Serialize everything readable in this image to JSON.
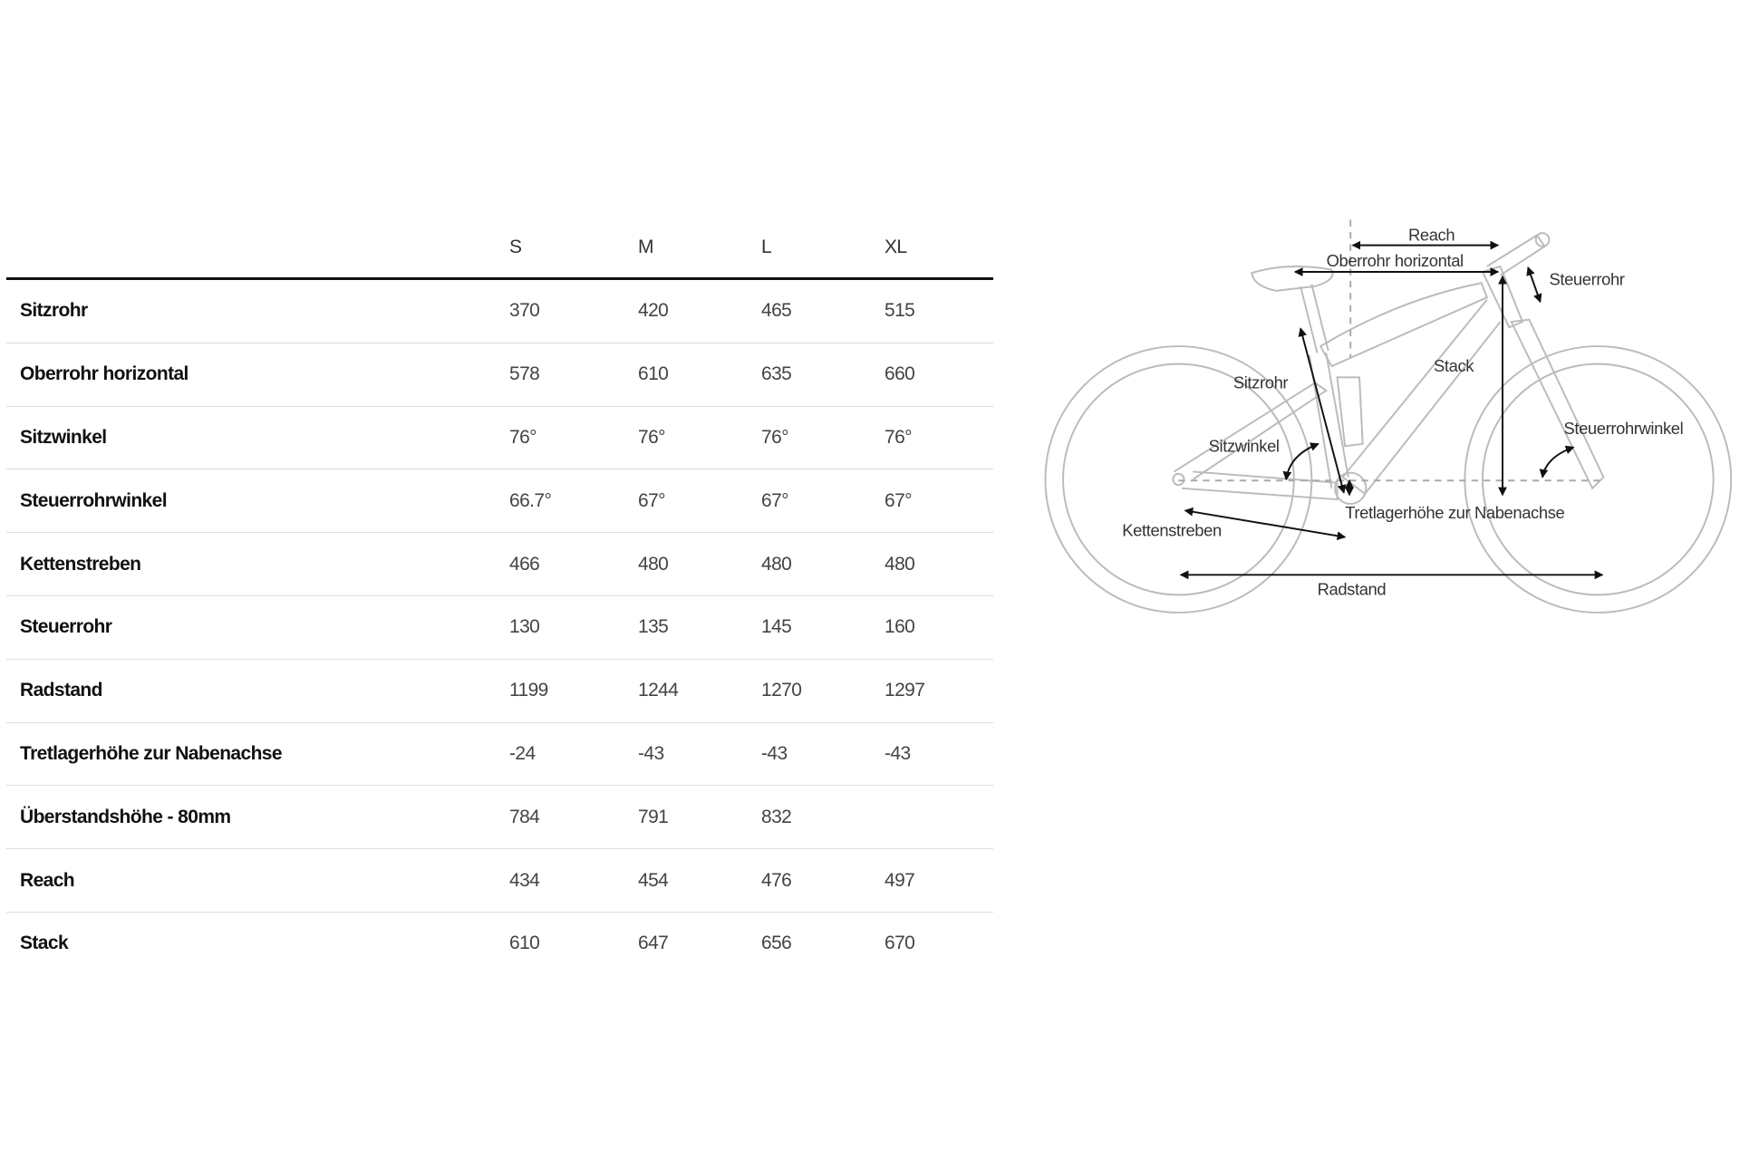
{
  "table": {
    "columns": [
      "S",
      "M",
      "L",
      "XL"
    ],
    "rows": [
      {
        "label": "Sitzrohr",
        "values": [
          "370",
          "420",
          "465",
          "515"
        ]
      },
      {
        "label": "Oberrohr horizontal",
        "values": [
          "578",
          "610",
          "635",
          "660"
        ]
      },
      {
        "label": "Sitzwinkel",
        "values": [
          "76°",
          "76°",
          "76°",
          "76°"
        ]
      },
      {
        "label": "Steuerrohrwinkel",
        "values": [
          "66.7°",
          "67°",
          "67°",
          "67°"
        ]
      },
      {
        "label": "Kettenstreben",
        "values": [
          "466",
          "480",
          "480",
          "480"
        ]
      },
      {
        "label": "Steuerrohr",
        "values": [
          "130",
          "135",
          "145",
          "160"
        ]
      },
      {
        "label": "Radstand",
        "values": [
          "1199",
          "1244",
          "1270",
          "1297"
        ]
      },
      {
        "label": "Tretlagerhöhe zur Nabenachse",
        "values": [
          "-24",
          "-43",
          "-43",
          "-43"
        ]
      },
      {
        "label": "Überstandshöhe - 80mm",
        "values": [
          "784",
          "791",
          "832",
          ""
        ]
      },
      {
        "label": "Reach",
        "values": [
          "434",
          "454",
          "476",
          "497"
        ]
      },
      {
        "label": "Stack",
        "values": [
          "610",
          "647",
          "656",
          "670"
        ]
      }
    ]
  },
  "diagram": {
    "labels": {
      "reach": "Reach",
      "oberrohr": "Oberrohr horizontal",
      "steuerrohr": "Steuerrohr",
      "stack": "Stack",
      "sitzrohr": "Sitzrohr",
      "steuerrohrwinkel": "Steuerrohrwinkel",
      "sitzwinkel": "Sitzwinkel",
      "tretlager": "Tretlagerhöhe zur Nabenachse",
      "kettenstreben": "Kettenstreben",
      "radstand": "Radstand"
    },
    "colors": {
      "frame": "#bbbbbb",
      "arrows": "#111111"
    }
  }
}
